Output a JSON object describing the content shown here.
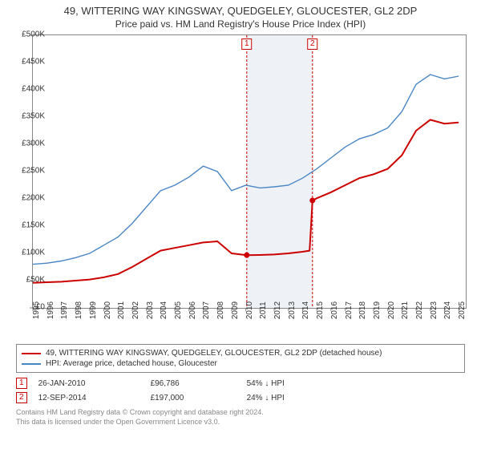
{
  "title": "49, WITTERING WAY KINGSWAY, QUEDGELEY, GLOUCESTER, GL2 2DP",
  "subtitle": "Price paid vs. HM Land Registry's House Price Index (HPI)",
  "chart": {
    "type": "line",
    "background_color": "#ffffff",
    "plot_border_color": "#888888",
    "shade_color": "#eef2f7",
    "xlim": [
      1995,
      2025.5
    ],
    "ylim": [
      0,
      500000
    ],
    "ytick_step": 50000,
    "ytick_prefix": "£",
    "ytick_format": "K",
    "xtick_step": 1,
    "xtick_years": [
      1995,
      1996,
      1997,
      1998,
      1999,
      2000,
      2001,
      2002,
      2003,
      2004,
      2005,
      2006,
      2007,
      2008,
      2009,
      2010,
      2011,
      2012,
      2013,
      2014,
      2015,
      2016,
      2017,
      2018,
      2019,
      2020,
      2021,
      2022,
      2023,
      2024,
      2025
    ],
    "grid_color": "#e0e0e0",
    "shade_range": [
      2010.07,
      2014.7
    ],
    "marker_guides": [
      {
        "label": "1",
        "x": 2010.07,
        "color": "#cc0000",
        "dash": "3,2"
      },
      {
        "label": "2",
        "x": 2014.7,
        "color": "#cc0000",
        "dash": "3,2"
      }
    ],
    "series": [
      {
        "name": "property",
        "label": "49, WITTERING WAY KINGSWAY, QUEDGELEY, GLOUCESTER, GL2 2DP (detached house)",
        "color": "#cc0000",
        "width": 2,
        "points": [
          [
            1995,
            46000
          ],
          [
            1996,
            47000
          ],
          [
            1997,
            48000
          ],
          [
            1998,
            50000
          ],
          [
            1999,
            52000
          ],
          [
            2000,
            56000
          ],
          [
            2001,
            62000
          ],
          [
            2002,
            75000
          ],
          [
            2003,
            90000
          ],
          [
            2004,
            105000
          ],
          [
            2005,
            110000
          ],
          [
            2006,
            115000
          ],
          [
            2007,
            120000
          ],
          [
            2008,
            122000
          ],
          [
            2009,
            100000
          ],
          [
            2010.07,
            96786
          ],
          [
            2011,
            97000
          ],
          [
            2012,
            98000
          ],
          [
            2013,
            100000
          ],
          [
            2014,
            103000
          ],
          [
            2014.5,
            105000
          ],
          [
            2014.7,
            197000
          ],
          [
            2015,
            201000
          ],
          [
            2016,
            212000
          ],
          [
            2017,
            225000
          ],
          [
            2018,
            238000
          ],
          [
            2019,
            245000
          ],
          [
            2020,
            255000
          ],
          [
            2021,
            280000
          ],
          [
            2022,
            325000
          ],
          [
            2023,
            345000
          ],
          [
            2024,
            338000
          ],
          [
            2025,
            340000
          ]
        ],
        "markers": [
          {
            "x": 2010.07,
            "y": 96786
          },
          {
            "x": 2014.7,
            "y": 197000
          }
        ]
      },
      {
        "name": "hpi",
        "label": "HPI: Average price, detached house, Gloucester",
        "color": "#4a86c5",
        "width": 1.4,
        "points": [
          [
            1995,
            80000
          ],
          [
            1996,
            82000
          ],
          [
            1997,
            86000
          ],
          [
            1998,
            92000
          ],
          [
            1999,
            100000
          ],
          [
            2000,
            115000
          ],
          [
            2001,
            130000
          ],
          [
            2002,
            155000
          ],
          [
            2003,
            185000
          ],
          [
            2004,
            215000
          ],
          [
            2005,
            225000
          ],
          [
            2006,
            240000
          ],
          [
            2007,
            260000
          ],
          [
            2008,
            250000
          ],
          [
            2009,
            215000
          ],
          [
            2010,
            225000
          ],
          [
            2011,
            220000
          ],
          [
            2012,
            222000
          ],
          [
            2013,
            225000
          ],
          [
            2014,
            238000
          ],
          [
            2015,
            255000
          ],
          [
            2016,
            275000
          ],
          [
            2017,
            295000
          ],
          [
            2018,
            310000
          ],
          [
            2019,
            318000
          ],
          [
            2020,
            330000
          ],
          [
            2021,
            360000
          ],
          [
            2022,
            410000
          ],
          [
            2023,
            428000
          ],
          [
            2024,
            420000
          ],
          [
            2025,
            425000
          ]
        ]
      }
    ]
  },
  "legend": {
    "items": [
      {
        "color": "#cc0000",
        "label_path": "chart.series.0.label"
      },
      {
        "color": "#4a86c5",
        "label_path": "chart.series.1.label"
      }
    ]
  },
  "sales": [
    {
      "marker": "1",
      "date": "26-JAN-2010",
      "price": "£96,786",
      "diff": "54% ↓ HPI"
    },
    {
      "marker": "2",
      "date": "12-SEP-2014",
      "price": "£197,000",
      "diff": "24% ↓ HPI"
    }
  ],
  "footer_line1": "Contains HM Land Registry data © Crown copyright and database right 2024.",
  "footer_line2": "This data is licensed under the Open Government Licence v3.0."
}
